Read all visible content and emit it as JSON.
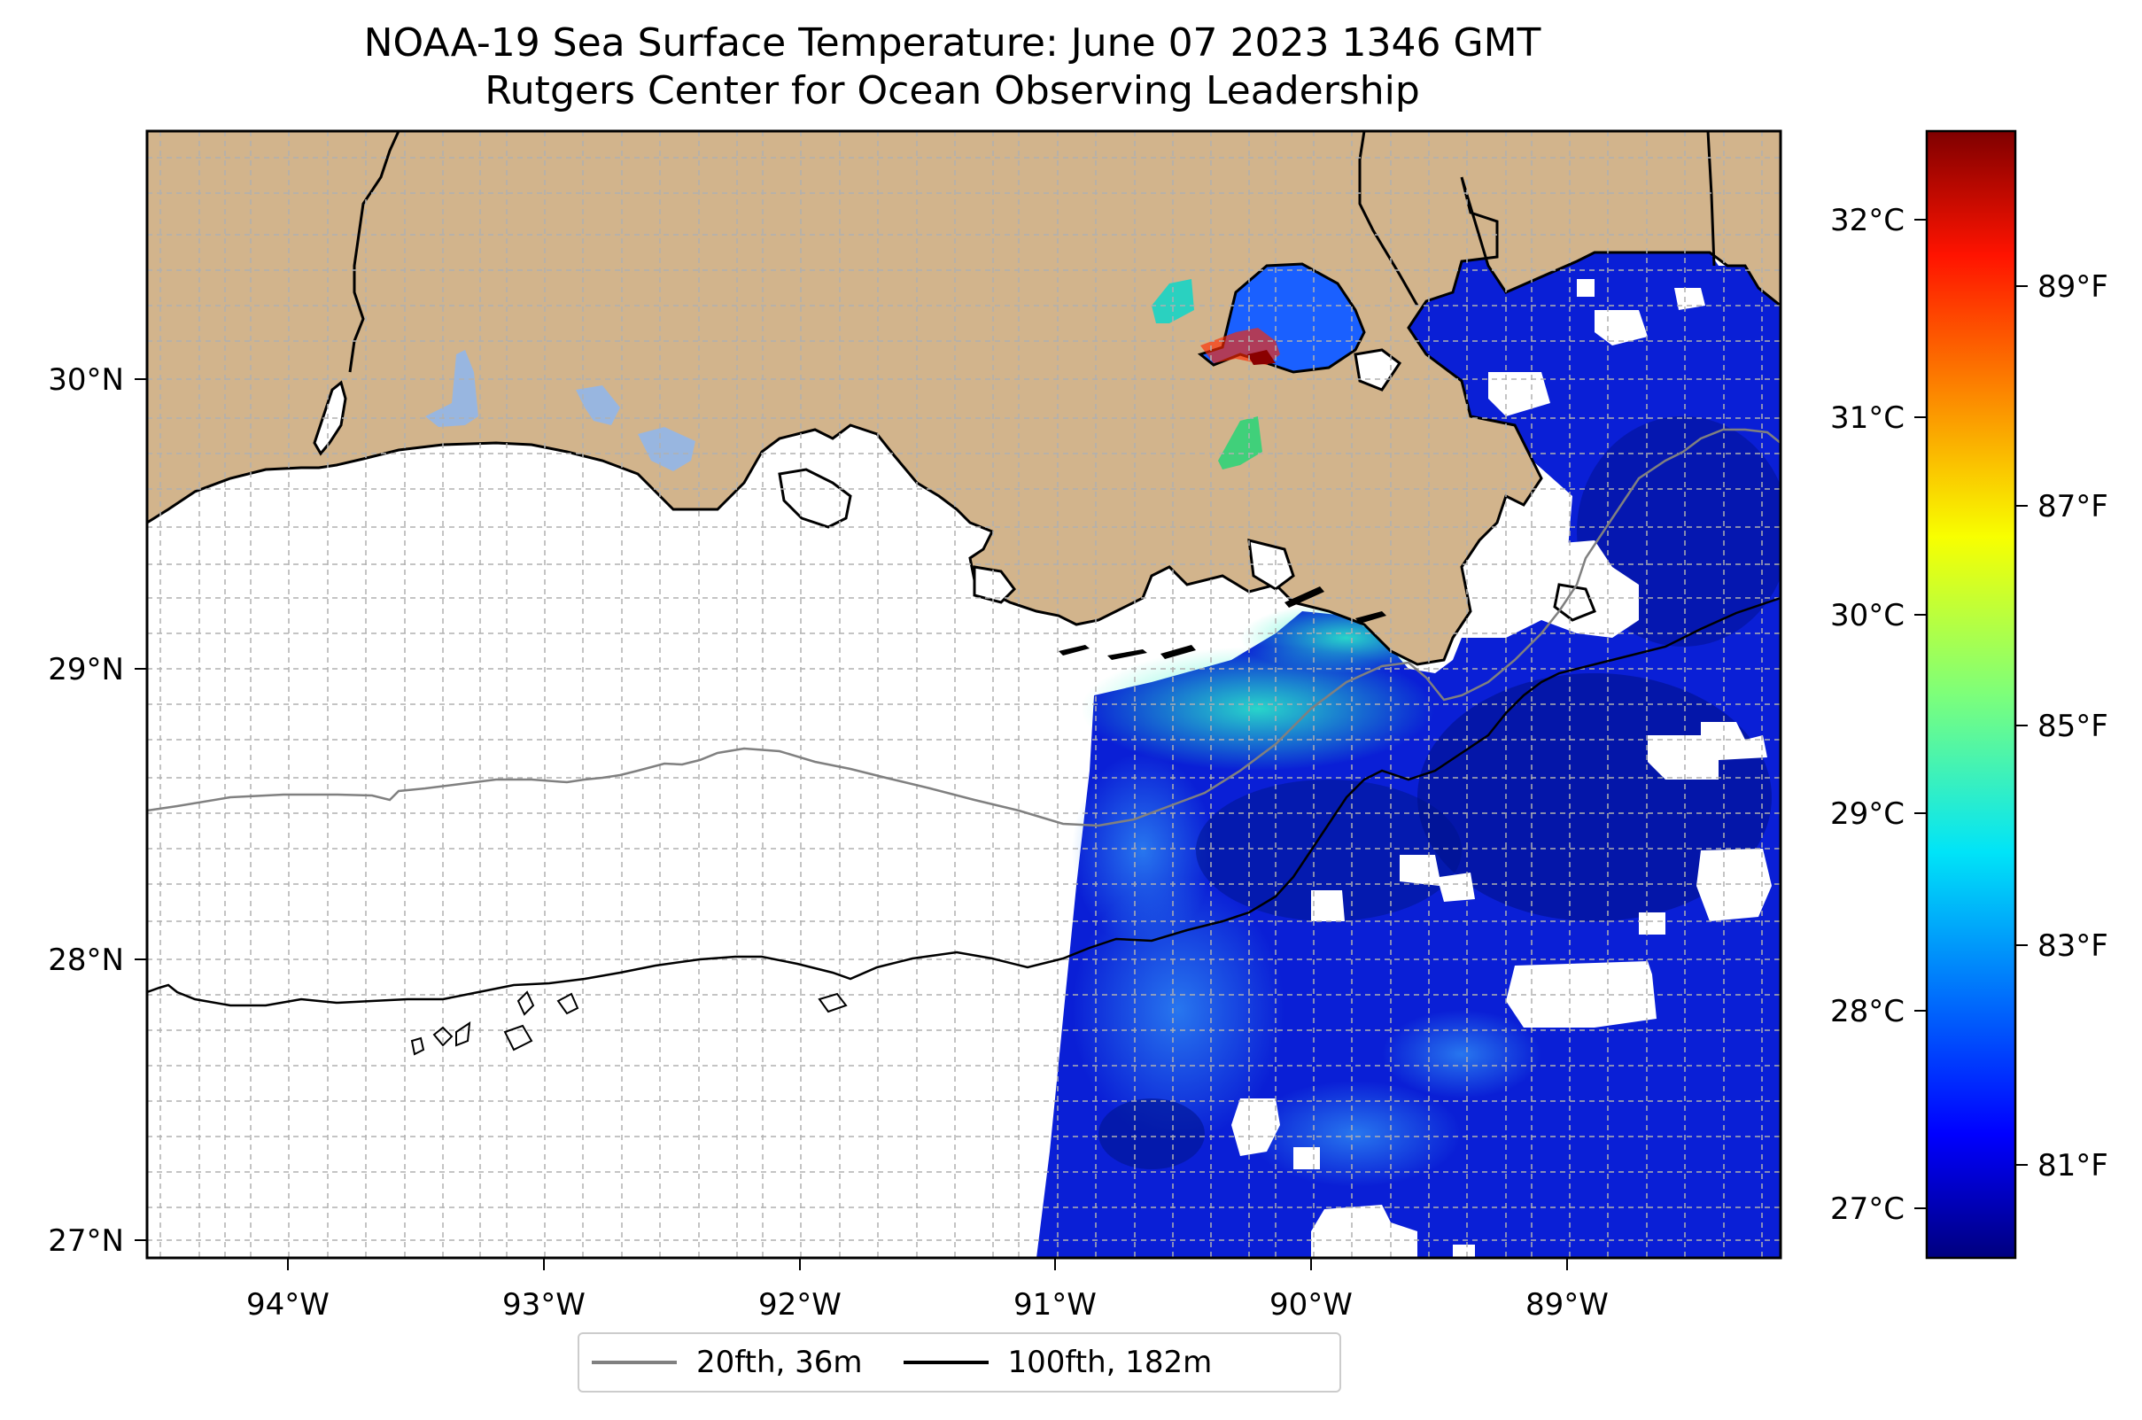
{
  "title": {
    "line1": "NOAA-19 Sea Surface Temperature: June 07 2023 1346 GMT",
    "line2": "Rutgers Center for Ocean Observing Leadership"
  },
  "map": {
    "lon_range": [
      -94.5,
      -88.2
    ],
    "lat_range": [
      26.95,
      30.85
    ],
    "lon_ticks": [
      "94°W",
      "93°W",
      "92°W",
      "91°W",
      "90°W",
      "89°W"
    ],
    "lat_ticks": [
      "30°N",
      "29°N",
      "28°N",
      "27°N"
    ],
    "grid": "on (dashed)",
    "land_color": "#d2b48c",
    "ocean_color": "#ffffff",
    "inland_water_color": "#98b6e0"
  },
  "colorbar": {
    "colormap": "jet",
    "celsius_ticks": [
      "32°C",
      "31°C",
      "30°C",
      "29°C",
      "28°C",
      "27°C"
    ],
    "fahrenheit_ticks": [
      "89°F",
      "87°F",
      "85°F",
      "83°F",
      "81°F"
    ],
    "range_celsius": [
      26.7,
      32.4
    ]
  },
  "legend": {
    "items": [
      {
        "label": "20fth, 36m",
        "color": "#808080"
      },
      {
        "label": "100fth, 182m",
        "color": "#000000"
      }
    ]
  }
}
